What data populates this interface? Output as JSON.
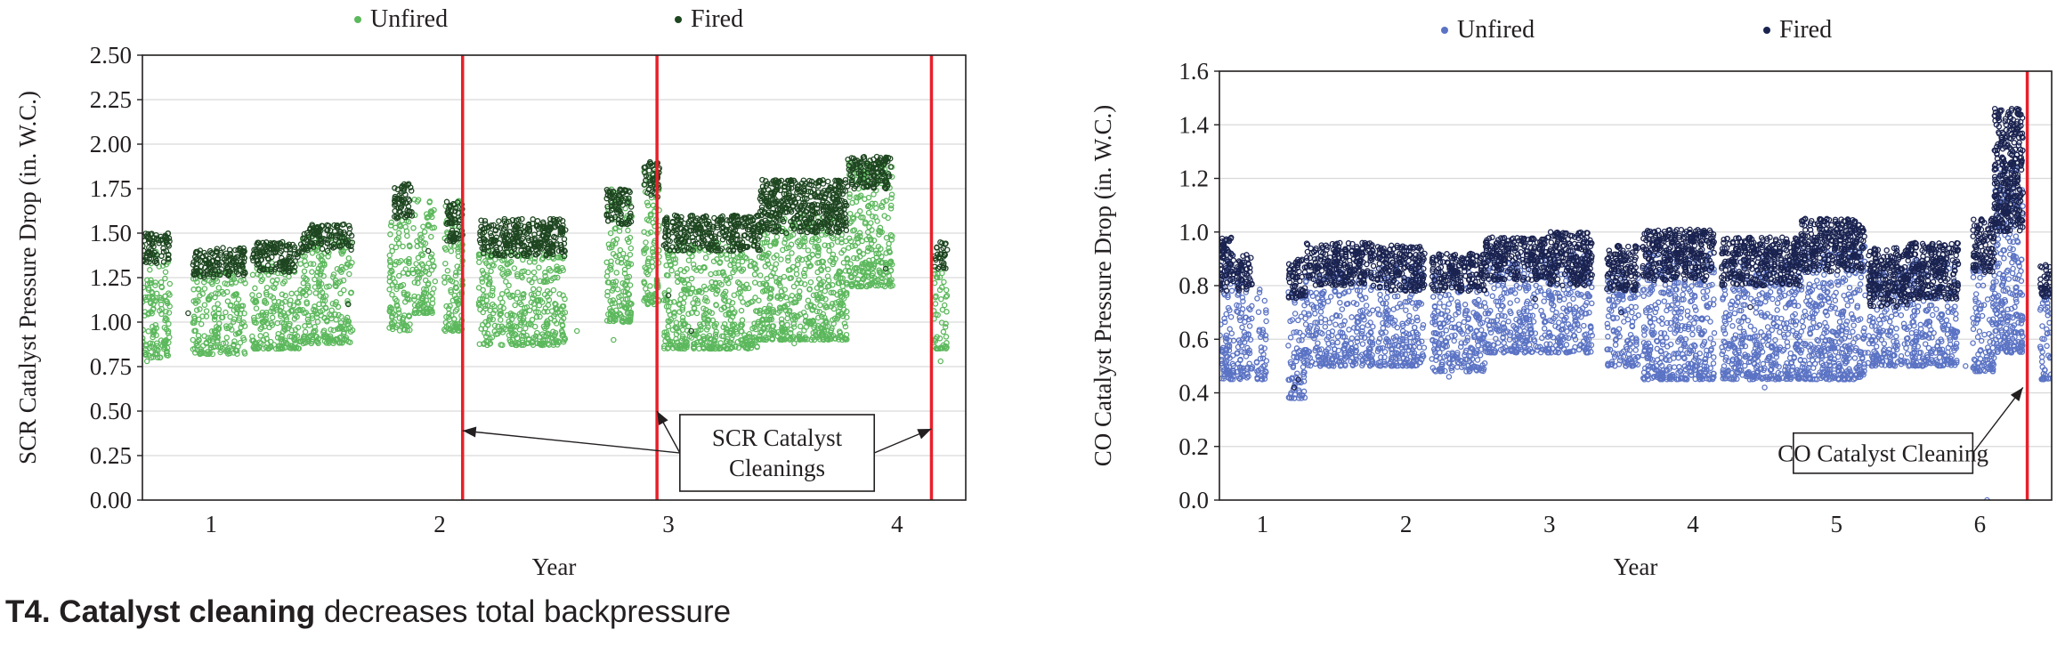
{
  "caption": {
    "bold": "T4. Catalyst cleaning",
    "rest": " decreases total backpressure"
  },
  "chart_data": [
    {
      "type": "scatter",
      "ylabel": "SCR Catalyst Pressure Drop (in. W.C.)",
      "xlabel": "Year",
      "xlim": [
        0.7,
        4.3
      ],
      "ylim": [
        0.0,
        2.5
      ],
      "x_ticks": [
        1,
        2,
        3,
        4
      ],
      "x_tick_labels": [
        "1",
        "2",
        "3",
        "4"
      ],
      "y_ticks": [
        0,
        0.25,
        0.5,
        0.75,
        1.0,
        1.25,
        1.5,
        1.75,
        2.0,
        2.25,
        2.5
      ],
      "y_tick_labels": [
        "0.00",
        "0.25",
        "0.50",
        "0.75",
        "1.00",
        "1.25",
        "1.50",
        "1.75",
        "2.00",
        "2.25",
        "2.50"
      ],
      "grid": "horizontal",
      "legend_position": "top",
      "series": [
        {
          "name": "Unfired",
          "color": "#5cb85c",
          "segments": [
            {
              "x": [
                0.7,
                0.82
              ],
              "lo": 0.8,
              "hi": 1.4
            },
            {
              "x": [
                0.92,
                1.15
              ],
              "lo": 0.82,
              "hi": 1.3
            },
            {
              "x": [
                1.18,
                1.4
              ],
              "lo": 0.85,
              "hi": 1.35
            },
            {
              "x": [
                1.4,
                1.62
              ],
              "lo": 0.88,
              "hi": 1.48
            },
            {
              "x": [
                1.78,
                1.87
              ],
              "lo": 0.95,
              "hi": 1.6
            },
            {
              "x": [
                1.88,
                1.98
              ],
              "lo": 1.05,
              "hi": 1.7
            },
            {
              "x": [
                2.02,
                2.1
              ],
              "lo": 0.95,
              "hi": 1.7
            },
            {
              "x": [
                2.17,
                2.55
              ],
              "lo": 0.87,
              "hi": 1.4
            },
            {
              "x": [
                2.73,
                2.84
              ],
              "lo": 1.0,
              "hi": 1.75
            },
            {
              "x": [
                2.89,
                2.96
              ],
              "lo": 1.1,
              "hi": 1.85
            },
            {
              "x": [
                2.98,
                3.4
              ],
              "lo": 0.85,
              "hi": 1.45
            },
            {
              "x": [
                3.4,
                3.78
              ],
              "lo": 0.9,
              "hi": 1.6
            },
            {
              "x": [
                3.78,
                3.98
              ],
              "lo": 1.2,
              "hi": 1.9
            },
            {
              "x": [
                4.16,
                4.22
              ],
              "lo": 0.85,
              "hi": 1.3
            }
          ],
          "isolated": [
            [
              0.72,
              0.78
            ],
            [
              1.18,
              0.92
            ],
            [
              1.55,
              0.9
            ],
            [
              2.2,
              1.0
            ],
            [
              2.6,
              0.95
            ],
            [
              2.76,
              0.9
            ],
            [
              3.55,
              0.88
            ],
            [
              4.19,
              0.78
            ]
          ]
        },
        {
          "name": "Fired",
          "color": "#1e4620",
          "segments": [
            {
              "x": [
                0.7,
                0.82
              ],
              "lo": 1.33,
              "hi": 1.5
            },
            {
              "x": [
                0.92,
                1.15
              ],
              "lo": 1.25,
              "hi": 1.42
            },
            {
              "x": [
                1.18,
                1.4
              ],
              "lo": 1.28,
              "hi": 1.45
            },
            {
              "x": [
                1.4,
                1.62
              ],
              "lo": 1.4,
              "hi": 1.55
            },
            {
              "x": [
                1.8,
                1.88
              ],
              "lo": 1.58,
              "hi": 1.78
            },
            {
              "x": [
                2.03,
                2.1
              ],
              "lo": 1.45,
              "hi": 1.68
            },
            {
              "x": [
                2.17,
                2.55
              ],
              "lo": 1.37,
              "hi": 1.58
            },
            {
              "x": [
                2.73,
                2.84
              ],
              "lo": 1.55,
              "hi": 1.75
            },
            {
              "x": [
                2.89,
                2.96
              ],
              "lo": 1.7,
              "hi": 1.9
            },
            {
              "x": [
                2.98,
                3.4
              ],
              "lo": 1.4,
              "hi": 1.6
            },
            {
              "x": [
                3.4,
                3.78
              ],
              "lo": 1.5,
              "hi": 1.8
            },
            {
              "x": [
                3.78,
                3.98
              ],
              "lo": 1.75,
              "hi": 1.93
            },
            {
              "x": [
                4.16,
                4.22
              ],
              "lo": 1.3,
              "hi": 1.45
            }
          ],
          "isolated": [
            [
              0.9,
              1.05
            ],
            [
              1.6,
              1.1
            ],
            [
              3.0,
              1.15
            ],
            [
              3.95,
              1.3
            ],
            [
              3.1,
              0.95
            ],
            [
              1.95,
              1.4
            ]
          ]
        }
      ],
      "vertical_lines": [
        {
          "x": 2.1,
          "color": "#e8202a"
        },
        {
          "x": 2.95,
          "color": "#e8202a"
        },
        {
          "x": 4.15,
          "color": "#e8202a"
        }
      ],
      "annotations": [
        {
          "text": "SCR Catalyst Cleanings",
          "lines": [
            "SCR Catalyst",
            "Cleanings"
          ],
          "box_x": [
            3.05,
            3.9
          ],
          "box_y": [
            0.05,
            0.48
          ],
          "arrows": [
            [
              2.1,
              0.39
            ],
            [
              2.95,
              0.5
            ],
            [
              4.15,
              0.4
            ]
          ]
        }
      ]
    },
    {
      "type": "scatter",
      "ylabel": "CO Catalyst Pressure Drop (in. W.C.)",
      "xlabel": "Year",
      "xlim": [
        0.7,
        6.5
      ],
      "ylim": [
        0.0,
        1.6
      ],
      "x_ticks": [
        1,
        2,
        3,
        4,
        5,
        6
      ],
      "x_tick_labels": [
        "1",
        "2",
        "3",
        "4",
        "5",
        "6"
      ],
      "y_ticks": [
        0.0,
        0.2,
        0.4,
        0.6,
        0.8,
        1.0,
        1.2,
        1.4,
        1.6
      ],
      "y_tick_labels": [
        "0.0",
        "0.2",
        "0.4",
        "0.6",
        "0.8",
        "1.0",
        "1.2",
        "1.4",
        "1.6"
      ],
      "grid": "horizontal",
      "legend_position": "top",
      "series": [
        {
          "name": "Unfired",
          "color": "#5b73c4",
          "segments": [
            {
              "x": [
                0.7,
                0.8
              ],
              "lo": 0.45,
              "hi": 0.95
            },
            {
              "x": [
                0.82,
                0.93
              ],
              "lo": 0.45,
              "hi": 0.88
            },
            {
              "x": [
                0.96,
                1.03
              ],
              "lo": 0.45,
              "hi": 0.8
            },
            {
              "x": [
                1.18,
                1.3
              ],
              "lo": 0.38,
              "hi": 0.78
            },
            {
              "x": [
                1.3,
                1.78
              ],
              "lo": 0.5,
              "hi": 0.85
            },
            {
              "x": [
                1.8,
                2.13
              ],
              "lo": 0.5,
              "hi": 0.9
            },
            {
              "x": [
                2.18,
                2.55
              ],
              "lo": 0.48,
              "hi": 0.85
            },
            {
              "x": [
                2.55,
                3.0
              ],
              "lo": 0.55,
              "hi": 0.9
            },
            {
              "x": [
                3.0,
                3.3
              ],
              "lo": 0.55,
              "hi": 0.92
            },
            {
              "x": [
                3.4,
                3.62
              ],
              "lo": 0.5,
              "hi": 0.85
            },
            {
              "x": [
                3.65,
                4.15
              ],
              "lo": 0.45,
              "hi": 0.92
            },
            {
              "x": [
                4.2,
                4.75
              ],
              "lo": 0.45,
              "hi": 0.9
            },
            {
              "x": [
                4.75,
                5.2
              ],
              "lo": 0.45,
              "hi": 0.95
            },
            {
              "x": [
                5.22,
                5.5
              ],
              "lo": 0.5,
              "hi": 0.85
            },
            {
              "x": [
                5.5,
                5.85
              ],
              "lo": 0.5,
              "hi": 0.9
            },
            {
              "x": [
                5.95,
                6.1
              ],
              "lo": 0.48,
              "hi": 0.9
            },
            {
              "x": [
                6.1,
                6.3
              ],
              "lo": 0.55,
              "hi": 1.25
            },
            {
              "x": [
                6.42,
                6.5
              ],
              "lo": 0.45,
              "hi": 0.8
            }
          ],
          "isolated": [
            [
              0.75,
              0.5
            ],
            [
              1.2,
              0.4
            ],
            [
              1.26,
              0.39
            ],
            [
              2.3,
              0.46
            ],
            [
              4.5,
              0.42
            ],
            [
              5.9,
              0.5
            ],
            [
              6.05,
              0.0
            ]
          ]
        },
        {
          "name": "Fired",
          "color": "#1a2350",
          "segments": [
            {
              "x": [
                0.7,
                0.8
              ],
              "lo": 0.78,
              "hi": 0.98
            },
            {
              "x": [
                0.82,
                0.93
              ],
              "lo": 0.78,
              "hi": 0.92
            },
            {
              "x": [
                1.18,
                1.3
              ],
              "lo": 0.75,
              "hi": 0.9
            },
            {
              "x": [
                1.3,
                1.78
              ],
              "lo": 0.8,
              "hi": 0.96
            },
            {
              "x": [
                1.8,
                2.13
              ],
              "lo": 0.78,
              "hi": 0.95
            },
            {
              "x": [
                2.18,
                2.55
              ],
              "lo": 0.78,
              "hi": 0.92
            },
            {
              "x": [
                2.55,
                3.0
              ],
              "lo": 0.82,
              "hi": 0.98
            },
            {
              "x": [
                3.0,
                3.3
              ],
              "lo": 0.8,
              "hi": 1.0
            },
            {
              "x": [
                3.4,
                3.62
              ],
              "lo": 0.78,
              "hi": 0.95
            },
            {
              "x": [
                3.65,
                4.15
              ],
              "lo": 0.82,
              "hi": 1.01
            },
            {
              "x": [
                4.2,
                4.75
              ],
              "lo": 0.8,
              "hi": 0.98
            },
            {
              "x": [
                4.75,
                5.2
              ],
              "lo": 0.85,
              "hi": 1.05
            },
            {
              "x": [
                5.22,
                5.5
              ],
              "lo": 0.72,
              "hi": 0.94
            },
            {
              "x": [
                5.5,
                5.85
              ],
              "lo": 0.75,
              "hi": 0.96
            },
            {
              "x": [
                5.95,
                6.1
              ],
              "lo": 0.85,
              "hi": 1.05
            },
            {
              "x": [
                6.1,
                6.3
              ],
              "lo": 1.0,
              "hi": 1.46
            },
            {
              "x": [
                6.42,
                6.5
              ],
              "lo": 0.75,
              "hi": 0.88
            }
          ],
          "isolated": [
            [
              1.22,
              0.42
            ],
            [
              1.25,
              0.45
            ],
            [
              3.5,
              0.7
            ],
            [
              2.9,
              0.75
            ],
            [
              4.4,
              0.72
            ]
          ]
        }
      ],
      "vertical_lines": [
        {
          "x": 6.33,
          "color": "#e8202a"
        }
      ],
      "annotations": [
        {
          "text": "CO Catalyst Cleaning",
          "lines": [
            "CO Catalyst Cleaning"
          ],
          "box_x": [
            4.7,
            5.95
          ],
          "box_y": [
            0.1,
            0.25
          ],
          "arrows": [
            [
              6.3,
              0.42
            ]
          ]
        }
      ]
    }
  ]
}
